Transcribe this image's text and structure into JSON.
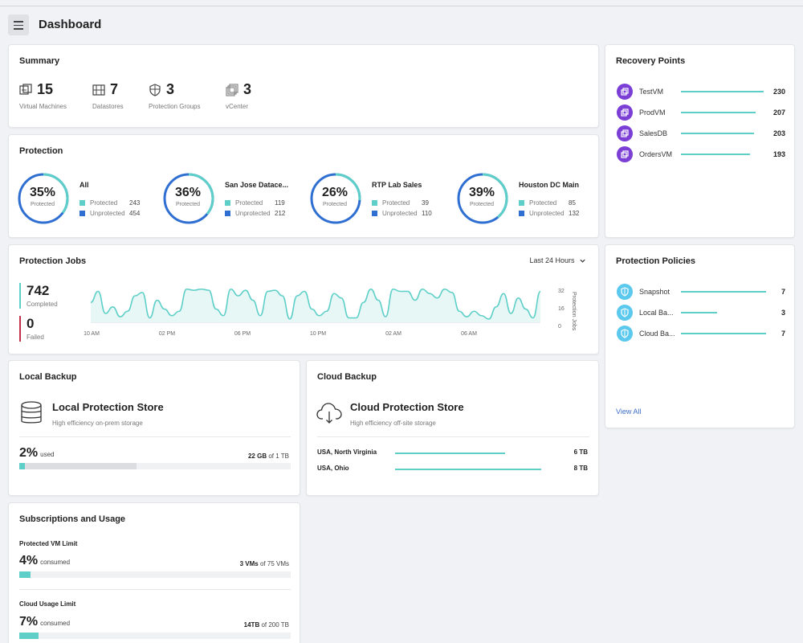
{
  "header": {
    "title": "Dashboard"
  },
  "summary": {
    "title": "Summary",
    "items": [
      {
        "value": "15",
        "label": "Virtual Machines",
        "icon": "vm-icon"
      },
      {
        "value": "7",
        "label": "Datastores",
        "icon": "datastore-icon"
      },
      {
        "value": "3",
        "label": "Protection Groups",
        "icon": "shield-icon"
      },
      {
        "value": "3",
        "label": "vCenter",
        "icon": "vcenter-icon"
      }
    ]
  },
  "protection": {
    "title": "Protection",
    "protected_label": "Protected",
    "unprotected_label": "Unprotected",
    "groups": [
      {
        "name": "All",
        "pct": "35%",
        "fraction": 0.35,
        "protected": "243",
        "unprotected": "454"
      },
      {
        "name": "San Jose Datace...",
        "pct": "36%",
        "fraction": 0.36,
        "protected": "119",
        "unprotected": "212"
      },
      {
        "name": "RTP Lab Sales",
        "pct": "26%",
        "fraction": 0.26,
        "protected": "39",
        "unprotected": "110"
      },
      {
        "name": "Houston DC Main",
        "pct": "39%",
        "fraction": 0.39,
        "protected": "85",
        "unprotected": "132"
      }
    ],
    "colors": {
      "protected": "#5ecfc8",
      "unprotected": "#2f6fd1"
    }
  },
  "jobs": {
    "title": "Protection Jobs",
    "range": "Last 24 Hours",
    "completed": {
      "value": "742",
      "label": "Completed",
      "color": "#5ecfc8"
    },
    "failed": {
      "value": "0",
      "label": "Failed",
      "color": "#c4314b"
    },
    "chart_data": {
      "type": "area",
      "x_labels": [
        "10 AM",
        "02 PM",
        "06 PM",
        "10 PM",
        "02 AM",
        "06 AM"
      ],
      "y_ticks": [
        "32",
        "16",
        "0"
      ],
      "ylabel": "Protection Jobs",
      "ylim": [
        0,
        32
      ],
      "values": [
        18,
        28,
        8,
        14,
        5,
        10,
        24,
        27,
        4,
        20,
        12,
        6,
        10,
        30,
        29,
        30,
        29,
        12,
        6,
        30,
        24,
        29,
        20,
        6,
        28,
        29,
        24,
        3,
        24,
        28,
        12,
        6,
        10,
        26,
        22,
        4,
        4,
        18,
        30,
        20,
        5,
        30,
        28,
        28,
        20,
        30,
        26,
        22,
        30,
        27,
        10,
        5,
        10,
        6,
        3,
        14,
        26,
        8,
        22,
        12,
        4,
        28
      ]
    }
  },
  "local_backup": {
    "title": "Local Backup",
    "store_name": "Local Protection Store",
    "store_desc": "High efficiency on-prem storage",
    "used_pct": "2%",
    "used_label": "used",
    "used_value": "22 GB",
    "of_total": "of 1 TB",
    "used_fraction": 0.02
  },
  "cloud_backup": {
    "title": "Cloud Backup",
    "store_name": "Cloud Protection Store",
    "store_desc": "High efficiency off-site storage",
    "regions": [
      {
        "name": "USA, North Virginia",
        "value": "6 TB",
        "amount": 6
      },
      {
        "name": "USA, Ohio",
        "value": "8 TB",
        "amount": 8
      }
    ]
  },
  "subscriptions": {
    "title": "Subscriptions and Usage",
    "vm_limit": {
      "title": "Protected VM Limit",
      "pct": "4%",
      "label": "consumed",
      "used": "3 VMs",
      "of": "of 75 VMs",
      "fraction": 0.04
    },
    "cloud_limit": {
      "title": "Cloud Usage Limit",
      "pct": "7%",
      "label": "consumed",
      "used": "14TB",
      "of": "of 200 TB",
      "fraction": 0.07
    }
  },
  "recovery_points": {
    "title": "Recovery Points",
    "items": [
      {
        "name": "TestVM",
        "value": "230",
        "amount": 230
      },
      {
        "name": "ProdVM",
        "value": "207",
        "amount": 207
      },
      {
        "name": "SalesDB",
        "value": "203",
        "amount": 203
      },
      {
        "name": "OrdersVM",
        "value": "193",
        "amount": 193
      }
    ],
    "icon_color": "#7b3fd6"
  },
  "policies": {
    "title": "Protection Policies",
    "items": [
      {
        "name": "Snapshot",
        "value": "7",
        "amount": 7
      },
      {
        "name": "Local Ba...",
        "value": "3",
        "amount": 3
      },
      {
        "name": "Cloud Ba...",
        "value": "7",
        "amount": 7
      }
    ],
    "icon_color": "#5bc8ee",
    "view_all": "View All"
  }
}
